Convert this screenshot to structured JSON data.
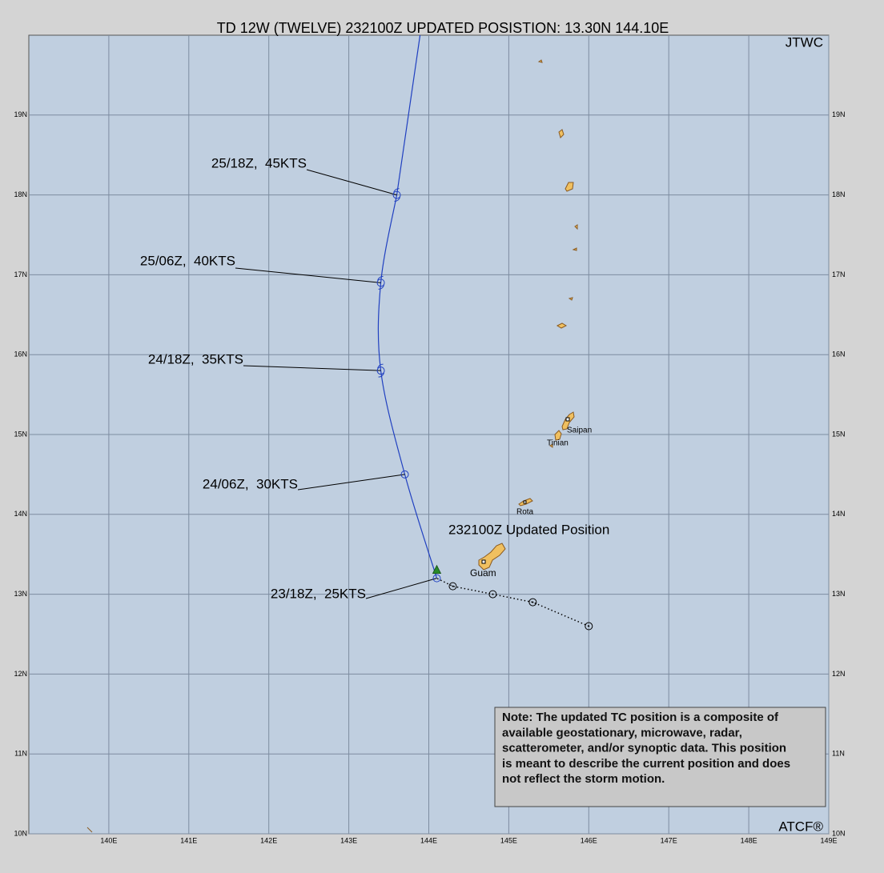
{
  "header": {
    "title": "TD 12W (TWELVE) 232100Z UPDATED POSISTION: 13.30N 144.10E",
    "agency": "JTWC",
    "credit": "ATCF®"
  },
  "lon_range": [
    139,
    149
  ],
  "lat_range": [
    10,
    20
  ],
  "lon_ticks": [
    {
      "value": 140,
      "label": "140E"
    },
    {
      "value": 141,
      "label": "141E"
    },
    {
      "value": 142,
      "label": "142E"
    },
    {
      "value": 143,
      "label": "143E"
    },
    {
      "value": 144,
      "label": "144E"
    },
    {
      "value": 145,
      "label": "145E"
    },
    {
      "value": 146,
      "label": "146E"
    },
    {
      "value": 147,
      "label": "147E"
    },
    {
      "value": 148,
      "label": "148E"
    },
    {
      "value": 149,
      "label": "149E"
    }
  ],
  "lat_ticks": [
    {
      "value": 10,
      "label": "10N"
    },
    {
      "value": 11,
      "label": "11N"
    },
    {
      "value": 12,
      "label": "12N"
    },
    {
      "value": 13,
      "label": "13N"
    },
    {
      "value": 14,
      "label": "14N"
    },
    {
      "value": 15,
      "label": "15N"
    },
    {
      "value": 16,
      "label": "16N"
    },
    {
      "value": 17,
      "label": "17N"
    },
    {
      "value": 18,
      "label": "18N"
    },
    {
      "value": 19,
      "label": "19N"
    }
  ],
  "current_position": {
    "lat": 13.3,
    "lon": 144.1,
    "label": "232100Z Updated Position"
  },
  "forecast_track": [
    {
      "lat": 13.2,
      "lon": 144.1,
      "label": "23/18Z,  25KTS"
    },
    {
      "lat": 14.5,
      "lon": 143.7,
      "label": "24/06Z,  30KTS"
    },
    {
      "lat": 15.8,
      "lon": 143.4,
      "label": "24/18Z,  35KTS"
    },
    {
      "lat": 16.9,
      "lon": 143.4,
      "label": "25/06Z,  40KTS"
    },
    {
      "lat": 18.0,
      "lon": 143.6,
      "label": "25/18Z,  45KTS"
    }
  ],
  "past_track": [
    {
      "lat": 12.6,
      "lon": 146.0
    },
    {
      "lat": 12.9,
      "lon": 145.3
    },
    {
      "lat": 13.0,
      "lon": 144.8
    },
    {
      "lat": 13.1,
      "lon": 144.3
    }
  ],
  "islands": {
    "saipan": "Saipan",
    "tinian": "Tinian",
    "rota": "Rota",
    "guam": "Guam"
  },
  "note": {
    "lines": [
      "Note:  The updated TC position is a composite of",
      "available geostationary, microwave, radar,",
      "scatterometer, and/or synoptic data.   This position",
      "is meant to describe the current position and does",
      "not reflect the storm motion."
    ]
  }
}
